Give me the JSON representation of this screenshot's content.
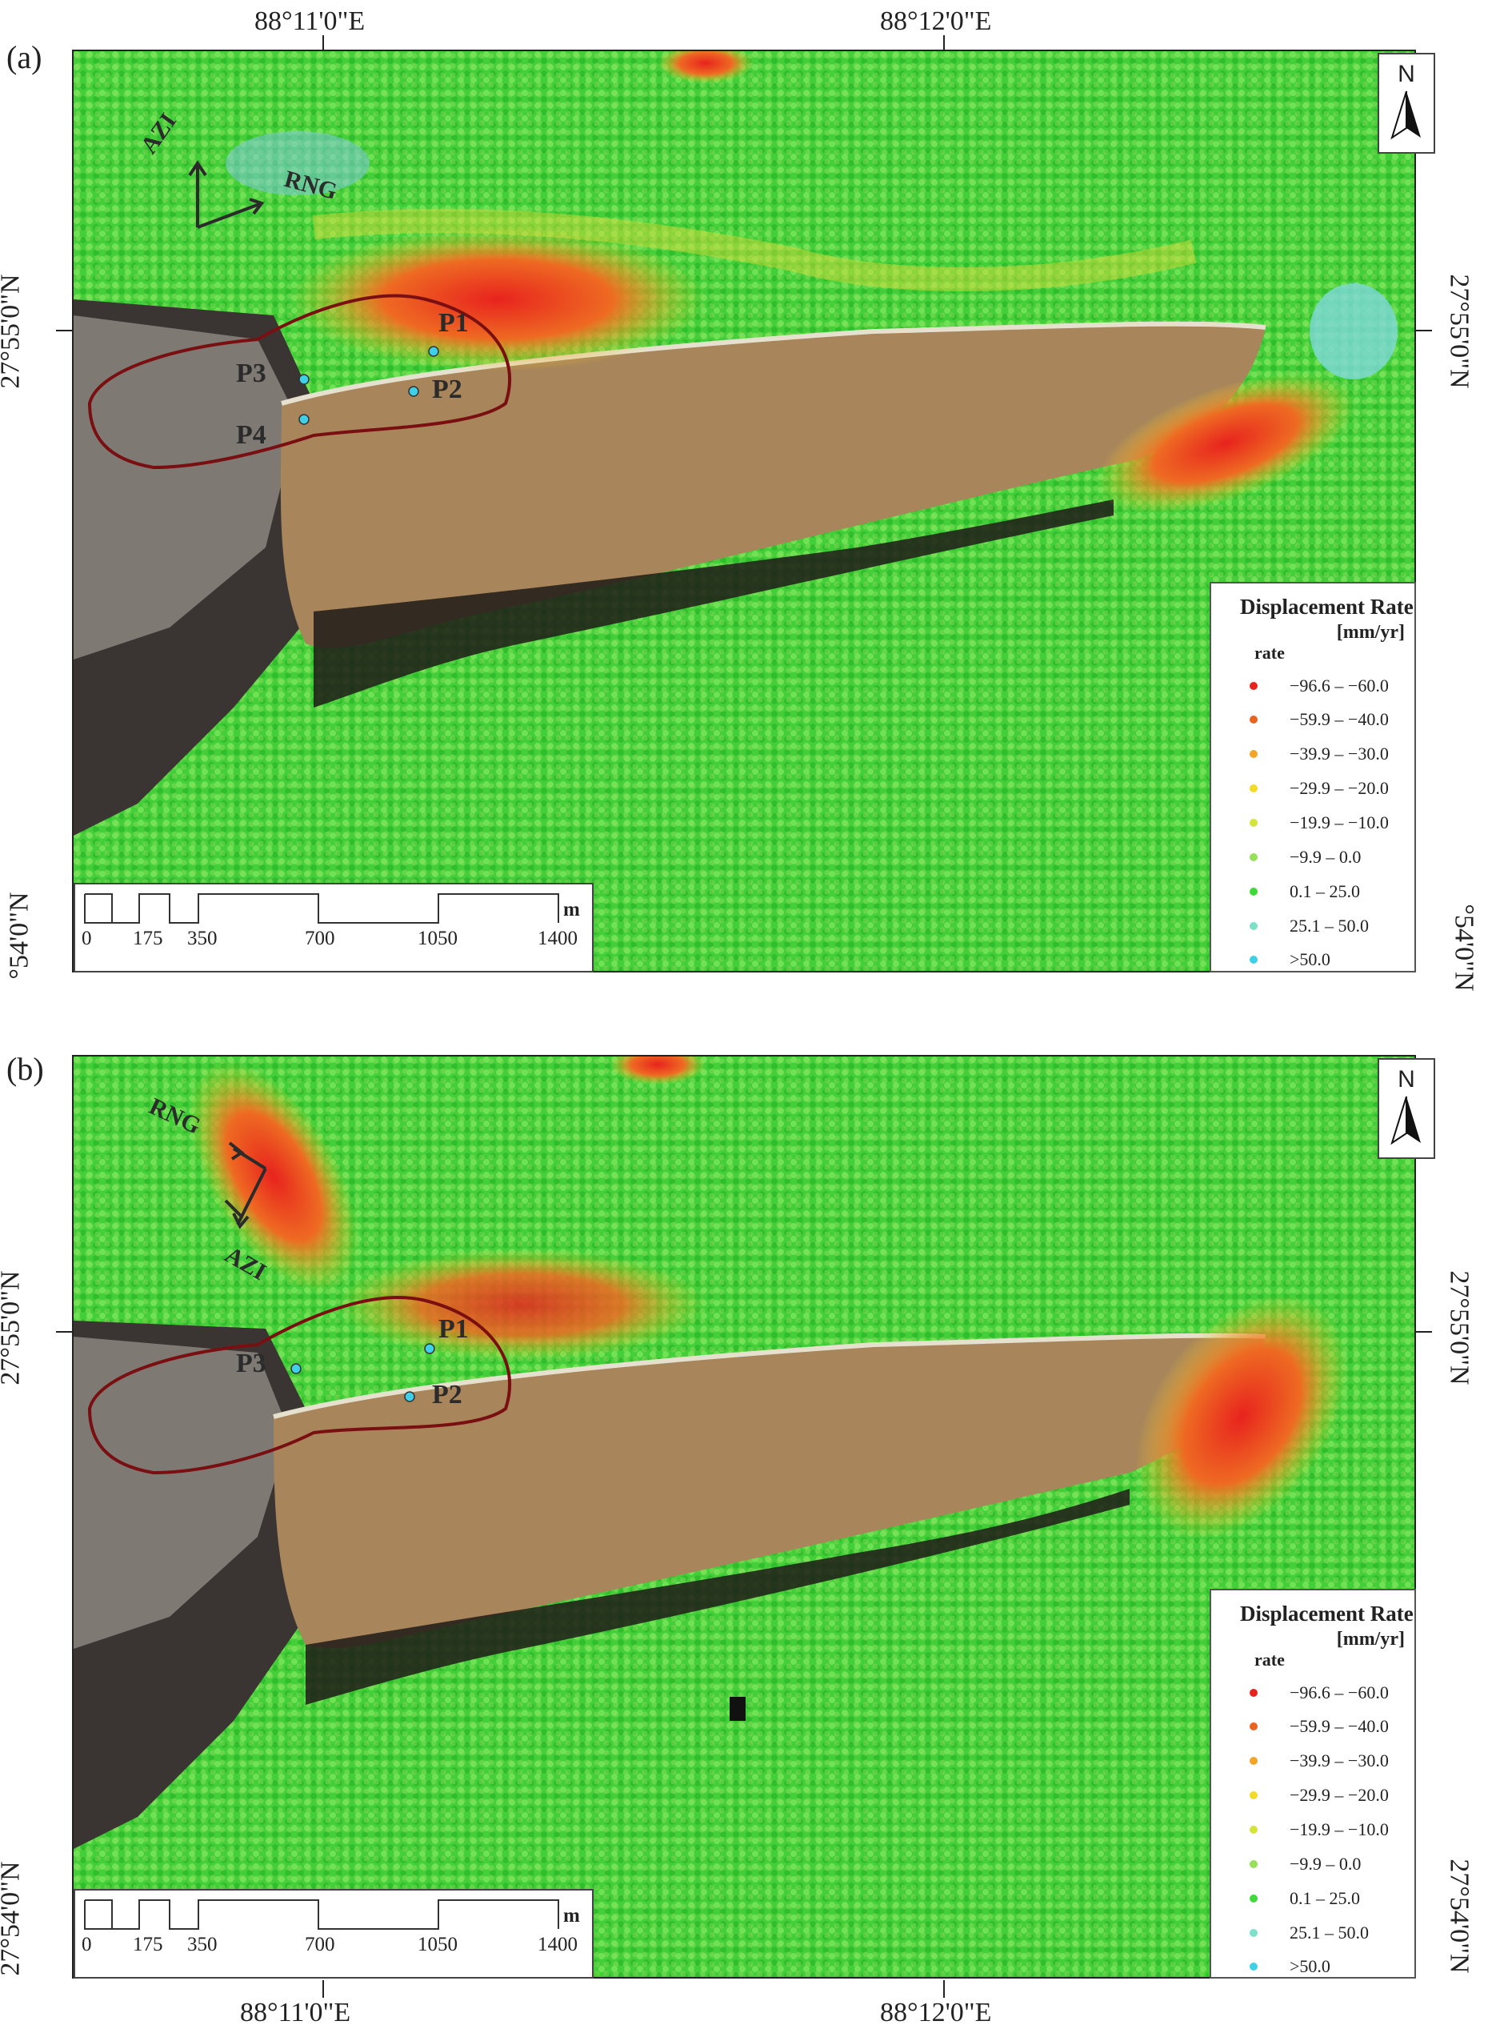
{
  "colors": {
    "high_neg": "#e8231e",
    "neg_40_60": "#e9641f",
    "neg_30_40": "#f2a526",
    "neg_20_30": "#f3da24",
    "neg_10_20": "#d5e43a",
    "neg_0_10": "#96e05a",
    "pos_0_25": "#3fd93a",
    "pos_25_50": "#7fe0c8",
    "pos_50": "#3fcfe8",
    "boundary": "#7a0f12",
    "lake": "#a8855a"
  },
  "legend": {
    "title": "Displacement Rate",
    "unit": "[mm/yr]",
    "field": "rate",
    "classes": [
      {
        "label": "−96.6 – −60.0",
        "color": "#e8231e"
      },
      {
        "label": "−59.9 – −40.0",
        "color": "#e9641f"
      },
      {
        "label": "−39.9 – −30.0",
        "color": "#f2a526"
      },
      {
        "label": "−29.9 – −20.0",
        "color": "#f3da24"
      },
      {
        "label": "−19.9 – −10.0",
        "color": "#d5e43a"
      },
      {
        "label": "−9.9 – 0.0",
        "color": "#96e05a"
      },
      {
        "label": "0.1 – 25.0",
        "color": "#3fd93a"
      },
      {
        "label": "25.1 – 50.0",
        "color": "#7fe0c8"
      },
      {
        "label": ">50.0",
        "color": "#3fcfe8"
      }
    ]
  },
  "scale": {
    "labels": [
      "0",
      "175",
      "350",
      "700",
      "1050",
      "1400"
    ],
    "unit": "m"
  },
  "north_label": "N",
  "panels": [
    {
      "label": "(a)",
      "top_lon": [
        "88°11'0\"E",
        "88°12'0\"E"
      ],
      "left_lat": "27°55'0\"N",
      "right_lat": [
        "27°55'0\"N",
        "°54'0\"N"
      ],
      "left_lat_bottom": "°54'0\"N",
      "points": [
        "P1",
        "P2",
        "P3",
        "P4"
      ],
      "azi": "AZI",
      "rng": "RNG"
    },
    {
      "label": "(b)",
      "bottom_lon": [
        "88°11'0\"E",
        "88°12'0\"E"
      ],
      "left_lat": "27°55'0\"N",
      "left_lat_bottom": "27°54'0\"N",
      "right_lat": [
        "27°55'0\"N",
        "27°54'0\"N"
      ],
      "points": [
        "P1",
        "P2",
        "P3"
      ],
      "azi": "AZI",
      "rng": "RNG"
    }
  ]
}
